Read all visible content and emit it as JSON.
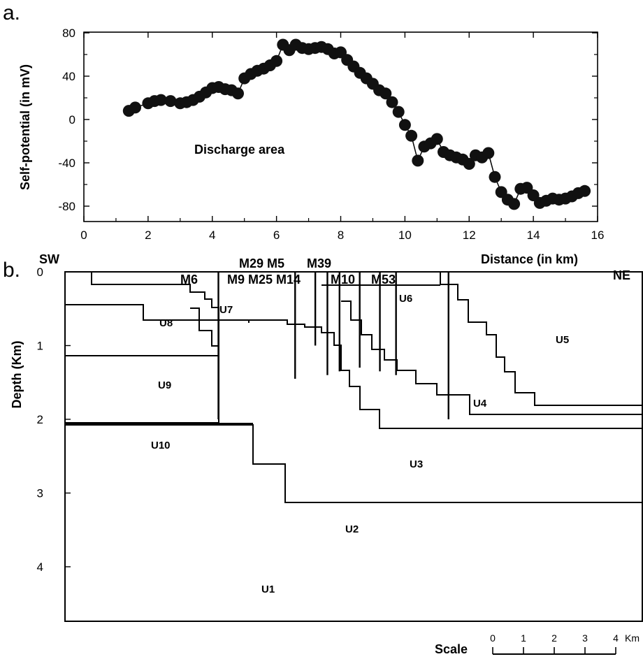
{
  "chart_data": [
    {
      "panel": "a.",
      "type": "scatter",
      "title": "",
      "xlabel": "Distance (in km)",
      "ylabel": "Self-potential (in mV)",
      "xlim": [
        0,
        16
      ],
      "ylim": [
        -90,
        80
      ],
      "xticks": [
        0,
        2,
        4,
        6,
        8,
        10,
        12,
        14,
        16
      ],
      "yticks": [
        80,
        40,
        0,
        -40,
        -80
      ],
      "annotation": "Discharge area",
      "x": [
        1.4,
        1.6,
        2.0,
        2.2,
        2.4,
        2.7,
        3.0,
        3.2,
        3.4,
        3.6,
        3.8,
        4.0,
        4.2,
        4.4,
        4.6,
        4.8,
        5.0,
        5.2,
        5.4,
        5.6,
        5.8,
        6.0,
        6.2,
        6.4,
        6.6,
        6.8,
        7.0,
        7.2,
        7.4,
        7.6,
        7.8,
        8.0,
        8.2,
        8.4,
        8.6,
        8.8,
        9.0,
        9.2,
        9.4,
        9.6,
        9.8,
        10.0,
        10.2,
        10.4,
        10.6,
        10.8,
        11.0,
        11.2,
        11.4,
        11.6,
        11.8,
        12.0,
        12.2,
        12.4,
        12.6,
        12.8,
        13.0,
        13.2,
        13.4,
        13.6,
        13.8,
        14.0,
        14.2,
        14.4,
        14.6,
        14.8,
        15.0,
        15.2,
        15.4,
        15.6
      ],
      "y": [
        8,
        11,
        15,
        17,
        18,
        17,
        15,
        16,
        18,
        21,
        25,
        29,
        30,
        28,
        27,
        24,
        38,
        42,
        45,
        47,
        50,
        54,
        69,
        64,
        69,
        66,
        65,
        66,
        67,
        65,
        61,
        62,
        55,
        49,
        43,
        38,
        33,
        27,
        24,
        16,
        7,
        -5,
        -15,
        -38,
        -25,
        -22,
        -18,
        -30,
        -33,
        -35,
        -37,
        -41,
        -33,
        -35,
        -31,
        -53,
        -67,
        -74,
        -78,
        -64,
        -63,
        -70,
        -77,
        -75,
        -73,
        -74,
        -73,
        -71,
        -68,
        -66
      ],
      "markers": "filled-circle"
    },
    {
      "panel": "b.",
      "type": "diagram",
      "title": "",
      "ylabel": "Depth (Km)",
      "yticks": [
        0,
        1,
        2,
        3,
        4
      ],
      "ylim": [
        0,
        5.2
      ],
      "direction_left": "SW",
      "direction_right": "NE",
      "wells": [
        {
          "name": "M6",
          "x_km": 3.8,
          "depth_km": 2.0
        },
        {
          "name": "M9",
          "x_km": 5.7,
          "depth_km": 1.45
        },
        {
          "name": "M29",
          "x_km": 6.2,
          "depth_km": 1.0
        },
        {
          "name": "M25",
          "x_km": 6.5,
          "depth_km": 1.4
        },
        {
          "name": "M5",
          "x_km": 6.8,
          "depth_km": 1.35
        },
        {
          "name": "M14",
          "x_km": 7.3,
          "depth_km": 1.3
        },
        {
          "name": "M39",
          "x_km": 7.8,
          "depth_km": 1.35
        },
        {
          "name": "M10",
          "x_km": 8.2,
          "depth_km": 1.4
        },
        {
          "name": "M53",
          "x_km": 9.5,
          "depth_km": 2.0
        }
      ],
      "well_labels": [
        {
          "text": "M29 M5",
          "row": 1
        },
        {
          "text": "M39",
          "row": 1
        },
        {
          "text": "M6",
          "row": 2
        },
        {
          "text": "M9 M25 M14",
          "row": 2
        },
        {
          "text": "M10",
          "row": 2
        },
        {
          "text": "M53",
          "row": 2
        }
      ],
      "units": [
        "U1",
        "U2",
        "U3",
        "U4",
        "U5",
        "U6",
        "U7",
        "U8",
        "U9",
        "U10"
      ],
      "scale": {
        "title": "Scale",
        "ticks": [
          "0",
          "1",
          "2",
          "3",
          "4"
        ],
        "unit": "Km"
      }
    }
  ]
}
